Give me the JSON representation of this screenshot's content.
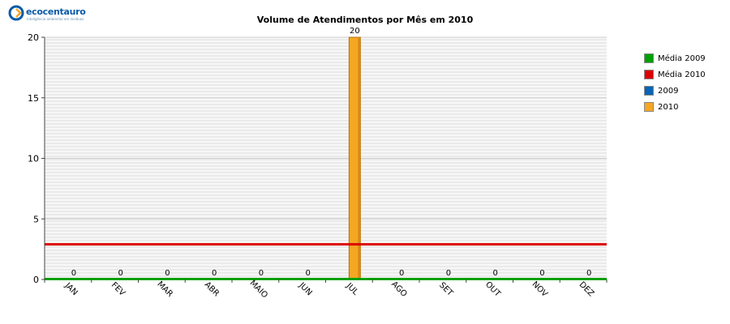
{
  "brand": {
    "name": "ecocentauro",
    "tagline": "inteligência ambiental em resíduos",
    "colors": {
      "primary": "#0a5aa8",
      "accent": "#f5a623"
    }
  },
  "chart_data": {
    "type": "bar",
    "title": "Volume de Atendimentos por Mês em 2010",
    "categories": [
      "JAN",
      "FEV",
      "MAR",
      "ABR",
      "MAIO",
      "JUN",
      "JUL",
      "AGO",
      "SET",
      "OUT",
      "NOV",
      "DEZ"
    ],
    "series": [
      {
        "name": "2009",
        "values": [
          0,
          0,
          0,
          0,
          0,
          0,
          0,
          0,
          0,
          0,
          0,
          0
        ],
        "color": "#0a64b4"
      },
      {
        "name": "2010",
        "values": [
          0,
          0,
          0,
          0,
          0,
          0,
          20,
          0,
          0,
          0,
          0,
          0
        ],
        "color": "#f5a623",
        "labels": [
          "0",
          "0",
          "0",
          "0",
          "0",
          "0",
          "20",
          "0",
          "0",
          "0",
          "0",
          "0"
        ]
      }
    ],
    "reference_lines": [
      {
        "name": "Média 2009",
        "value": 0,
        "color": "#00a000"
      },
      {
        "name": "Média 2010",
        "value": 2.9,
        "color": "#dd0000"
      }
    ],
    "yticks": [
      "0",
      "5",
      "10",
      "15",
      "20"
    ],
    "ylim": [
      0,
      20
    ],
    "grid": true,
    "legend_position": "right"
  },
  "legend": [
    {
      "label": "Média 2009",
      "color": "#00a000"
    },
    {
      "label": "Média 2010",
      "color": "#dd0000"
    },
    {
      "label": "2009",
      "color": "#0a64b4"
    },
    {
      "label": "2010",
      "color": "#f5a623"
    }
  ]
}
